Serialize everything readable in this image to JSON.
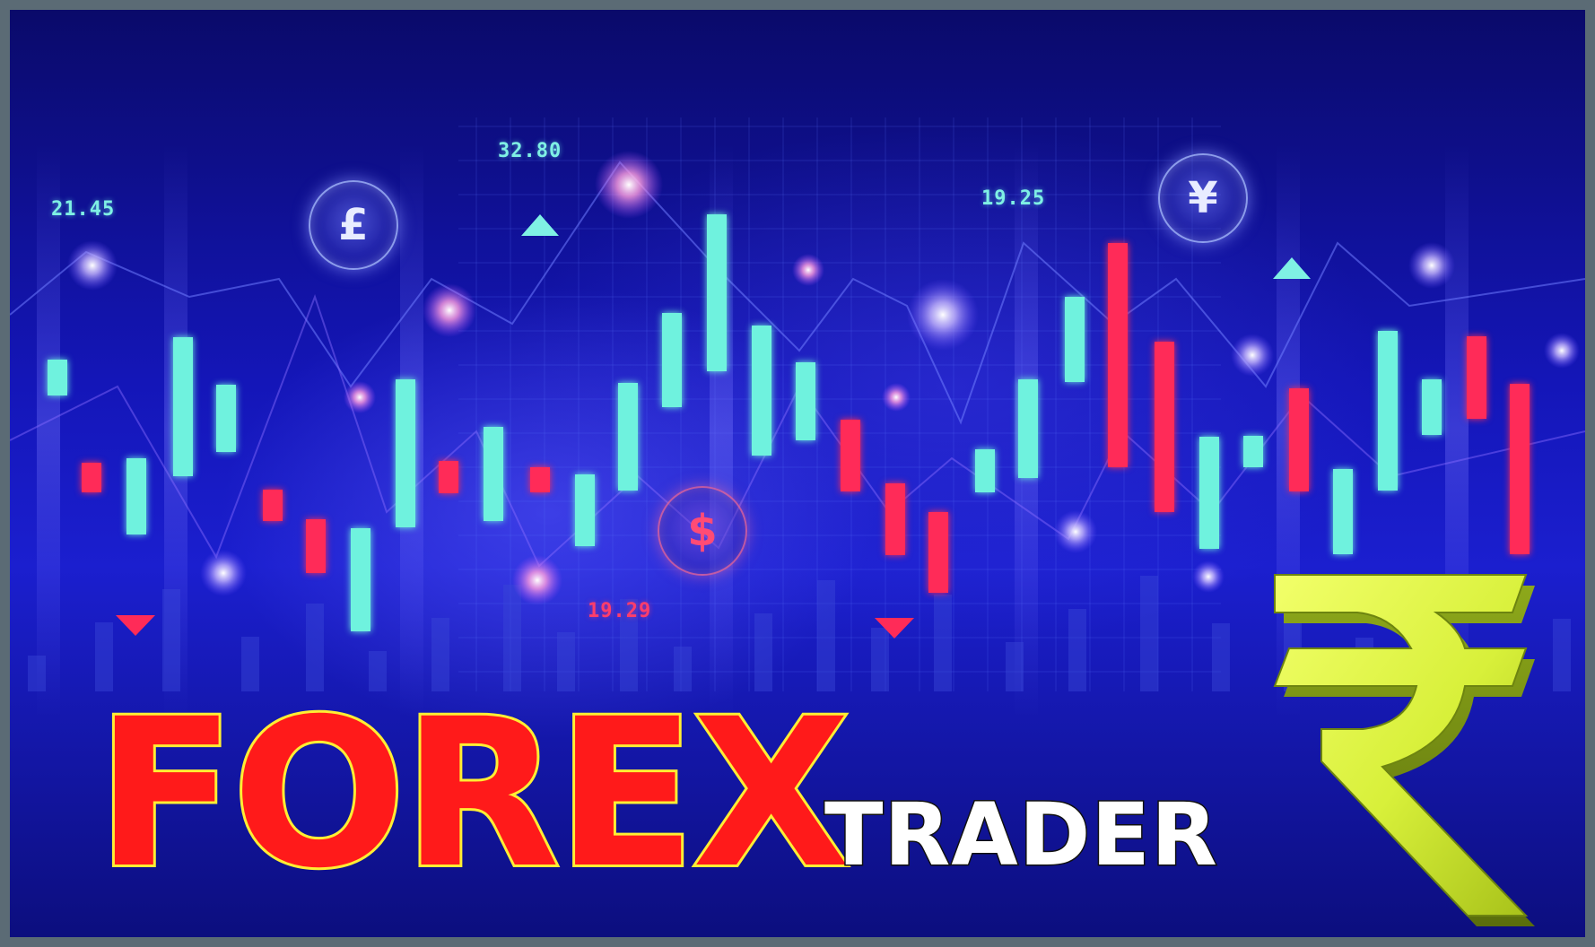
{
  "banner": {
    "title": "FOREX",
    "subtitle": "TRADER",
    "colors": {
      "background_top": "#0a0a6a",
      "background_mid": "#1b1fcf",
      "frame": "#5b6b75",
      "title_fill": "#ff1a1a",
      "title_outline": "#ffee33",
      "subtitle_fill": "#ffffff",
      "candle_up": "#6ff2de",
      "candle_down": "#ff2b58",
      "rupee_symbol": "#d8f03a"
    }
  },
  "price_tags": [
    {
      "text": "21.45",
      "direction": "up"
    },
    {
      "text": "32.80",
      "direction": "up"
    },
    {
      "text": "19.25",
      "direction": "up"
    },
    {
      "text": "19.29",
      "direction": "down"
    }
  ],
  "currency_badges": [
    {
      "symbol": "£",
      "icon": "pound-icon"
    },
    {
      "symbol": "¥",
      "icon": "yen-icon"
    },
    {
      "symbol": "$",
      "icon": "dollar-icon"
    }
  ],
  "candles": [
    {
      "color": "up"
    },
    {
      "color": "down"
    },
    {
      "color": "up"
    },
    {
      "color": "up"
    },
    {
      "color": "up"
    },
    {
      "color": "down"
    },
    {
      "color": "down"
    },
    {
      "color": "up"
    },
    {
      "color": "up"
    },
    {
      "color": "down"
    },
    {
      "color": "up"
    },
    {
      "color": "down"
    },
    {
      "color": "up"
    },
    {
      "color": "up"
    },
    {
      "color": "up"
    },
    {
      "color": "up"
    },
    {
      "color": "up"
    },
    {
      "color": "up"
    },
    {
      "color": "down"
    },
    {
      "color": "down"
    },
    {
      "color": "down"
    },
    {
      "color": "up"
    },
    {
      "color": "up"
    },
    {
      "color": "up"
    },
    {
      "color": "down"
    },
    {
      "color": "down"
    },
    {
      "color": "up"
    },
    {
      "color": "up"
    },
    {
      "color": "down"
    },
    {
      "color": "up"
    },
    {
      "color": "up"
    },
    {
      "color": "up"
    },
    {
      "color": "down"
    },
    {
      "color": "down"
    }
  ],
  "logo": {
    "icon": "rupee-icon"
  }
}
